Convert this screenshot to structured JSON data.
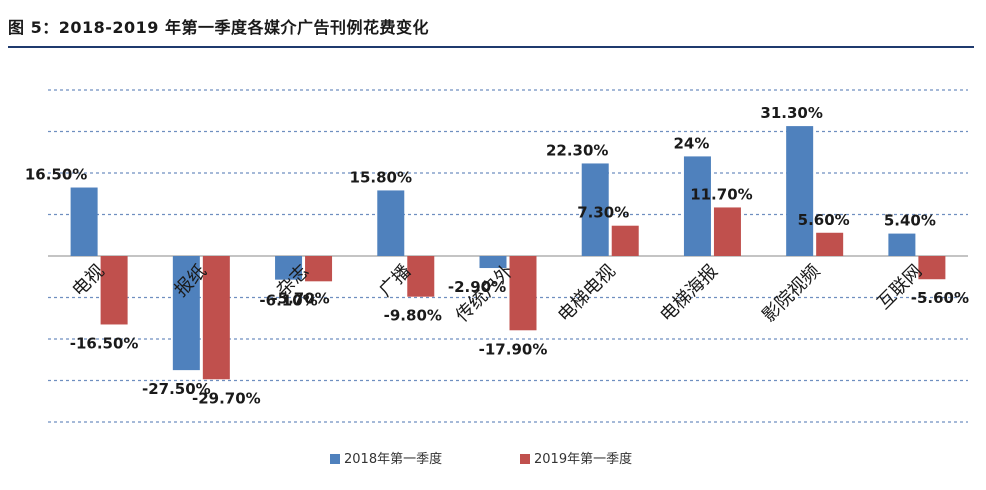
{
  "figure_title": "图 5：2018-2019 年第一季度各媒介广告刊例花费变化",
  "chart_data": {
    "type": "bar",
    "title": "图 5：2018-2019 年第一季度各媒介广告刊例花费变化",
    "categories": [
      "电视",
      "报纸",
      "杂志",
      "广播",
      "传统户外",
      "电梯电视",
      "电梯海报",
      "影院视频",
      "互联网"
    ],
    "series": [
      {
        "name": "2018年第一季度",
        "color": "#4F81BD",
        "values": [
          16.5,
          -27.5,
          -5.7,
          15.8,
          -2.9,
          22.3,
          24,
          31.3,
          5.4
        ],
        "labels": [
          "16.50%",
          "-27.50%",
          "-5.70%",
          "15.80%",
          "-2.90%",
          "22.30%",
          "24%",
          "31.30%",
          "5.40%"
        ]
      },
      {
        "name": "2019年第一季度",
        "color": "#C0504D",
        "values": [
          -16.5,
          -29.7,
          -6.1,
          -9.8,
          -17.9,
          7.3,
          11.7,
          5.6,
          -5.6
        ],
        "labels": [
          "-16.50%",
          "-29.70%",
          "-6.10%",
          "-9.80%",
          "-17.90%",
          "7.30%",
          "11.70%",
          "5.60%",
          "-5.60%"
        ]
      }
    ],
    "ylim": [
      -40,
      40
    ],
    "gridlines": [
      -40,
      -30,
      -20,
      -10,
      10,
      20,
      30,
      40
    ],
    "grid": true,
    "legend": "bottom-center",
    "xlabel": "",
    "ylabel": ""
  }
}
